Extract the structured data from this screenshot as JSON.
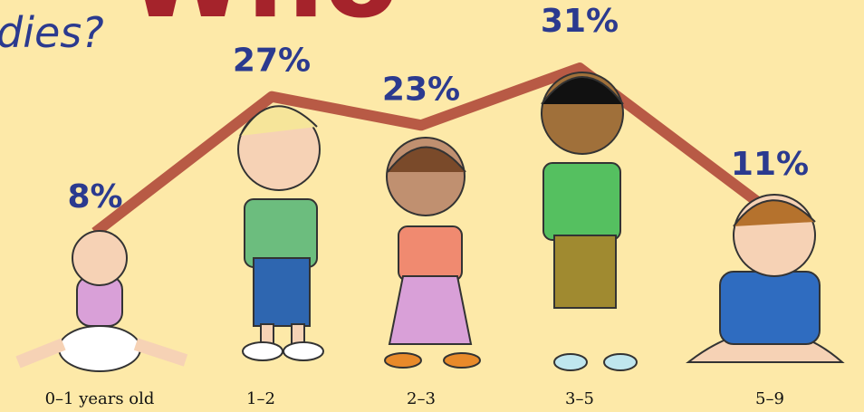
{
  "chart_data": {
    "type": "line",
    "title": "Who",
    "subtitle": "dies?",
    "categories": [
      "0–1 years old",
      "1–2",
      "2–3",
      "3–5",
      "5–9"
    ],
    "values": [
      8,
      27,
      23,
      31,
      11
    ],
    "value_labels": [
      "8%",
      "27%",
      "23%",
      "31%",
      "11%"
    ],
    "color": "#b85a45"
  }
}
